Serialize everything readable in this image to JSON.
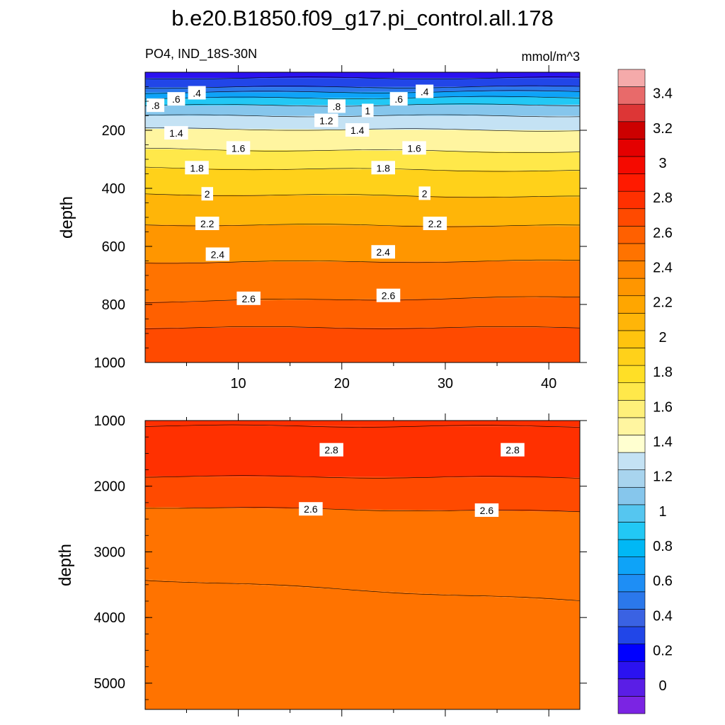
{
  "title": "b.e20.B1850.f09_g17.pi_control.all.178",
  "left_subtitle": "PO4, IND_18S-30N",
  "right_subtitle": "mmol/m^3",
  "chart_data": [
    {
      "type": "contour",
      "panel": "upper",
      "ylabel": "depth",
      "xlabel": "",
      "ylim": [
        1000,
        0
      ],
      "xlim": [
        1,
        43
      ],
      "y_ticks": [
        "200",
        "400",
        "600",
        "800",
        "1000"
      ],
      "y_tick_values": [
        200,
        400,
        600,
        800,
        1000
      ],
      "x_ticks": [
        "10",
        "20",
        "30",
        "40"
      ],
      "x_tick_values": [
        10,
        20,
        30,
        40
      ],
      "contour_interval": 0.1,
      "contour_depths_left_right": [
        {
          "level": 0.2,
          "left": 20,
          "right": 20
        },
        {
          "level": 0.4,
          "left": 52,
          "right": 50
        },
        {
          "level": 0.6,
          "left": 70,
          "right": 66
        },
        {
          "level": 0.8,
          "left": 90,
          "right": 86
        },
        {
          "level": 1.0,
          "left": 115,
          "right": 112
        },
        {
          "level": 1.2,
          "left": 150,
          "right": 150
        },
        {
          "level": 1.4,
          "left": 195,
          "right": 200
        },
        {
          "level": 1.6,
          "left": 265,
          "right": 275
        },
        {
          "level": 1.8,
          "left": 330,
          "right": 340
        },
        {
          "level": 2.0,
          "left": 420,
          "right": 430
        },
        {
          "level": 2.2,
          "left": 525,
          "right": 530
        },
        {
          "level": 2.4,
          "left": 655,
          "right": 650
        },
        {
          "level": 2.6,
          "left": 790,
          "right": 775
        },
        {
          "level": 2.7,
          "left": 880,
          "right": 880
        }
      ],
      "contour_labels": [
        {
          "text": ".4",
          "x": 6,
          "y": 72
        },
        {
          "text": ".6",
          "x": 4,
          "y": 93
        },
        {
          "text": ".8",
          "x": 2,
          "y": 115
        },
        {
          "text": "1.4",
          "x": 4,
          "y": 210
        },
        {
          "text": "1.8",
          "x": 6,
          "y": 330
        },
        {
          "text": "1.6",
          "x": 10,
          "y": 262
        },
        {
          "text": "2",
          "x": 7,
          "y": 420
        },
        {
          "text": "2.2",
          "x": 7,
          "y": 522
        },
        {
          "text": "2.4",
          "x": 8,
          "y": 628
        },
        {
          "text": "2.6",
          "x": 11,
          "y": 780
        },
        {
          "text": ".8",
          "x": 19.5,
          "y": 118
        },
        {
          "text": "1",
          "x": 22.5,
          "y": 133
        },
        {
          "text": ".6",
          "x": 25.5,
          "y": 93
        },
        {
          "text": ".4",
          "x": 28,
          "y": 67
        },
        {
          "text": "1.2",
          "x": 18.5,
          "y": 167
        },
        {
          "text": "1.4",
          "x": 21.5,
          "y": 200
        },
        {
          "text": "1.6",
          "x": 27,
          "y": 262
        },
        {
          "text": "1.8",
          "x": 24,
          "y": 330
        },
        {
          "text": "2",
          "x": 28,
          "y": 418
        },
        {
          "text": "2.2",
          "x": 29,
          "y": 522
        },
        {
          "text": "2.4",
          "x": 24,
          "y": 620
        },
        {
          "text": "2.6",
          "x": 24.5,
          "y": 770
        }
      ]
    },
    {
      "type": "contour",
      "panel": "lower",
      "ylabel": "depth",
      "xlabel": "",
      "ylim": [
        5400,
        1000
      ],
      "xlim": [
        1,
        43
      ],
      "y_ticks": [
        "1000",
        "2000",
        "3000",
        "4000",
        "5000"
      ],
      "y_tick_values": [
        1000,
        2000,
        3000,
        4000,
        5000
      ],
      "contour_depths_left_right": [
        {
          "level": 2.9,
          "left": 1080,
          "right": 1090
        },
        {
          "level": 2.8,
          "left": 1850,
          "right": 1870
        },
        {
          "level": 2.6,
          "left": 2320,
          "right": 2390
        },
        {
          "level": 2.5,
          "left": 3420,
          "right": 3750
        }
      ],
      "contour_labels": [
        {
          "text": "2.8",
          "x": 19,
          "y": 1450
        },
        {
          "text": "2.8",
          "x": 36.5,
          "y": 1450
        },
        {
          "text": "2.6",
          "x": 17,
          "y": 2350
        },
        {
          "text": "2.6",
          "x": 34,
          "y": 2370
        }
      ]
    }
  ],
  "colorbar": {
    "labels": [
      "3.4",
      "3.2",
      "3",
      "2.8",
      "2.6",
      "2.4",
      "2.2",
      "2",
      "1.8",
      "1.6",
      "1.4",
      "1.2",
      "1",
      "0.8",
      "0.6",
      "0.4",
      "0.2",
      "0"
    ],
    "colors": [
      "#7b24e3",
      "#5a1ee6",
      "#2b12f0",
      "#0000ff",
      "#2146e8",
      "#3a62e3",
      "#2b78eb",
      "#1e8ef5",
      "#0ea3f8",
      "#00b8f5",
      "#22c8f5",
      "#55c6f0",
      "#86c6ec",
      "#a8d4ee",
      "#c4e2f4",
      "#ffffd0",
      "#fff5a0",
      "#fff07a",
      "#ffe84a",
      "#ffdf26",
      "#ffd11a",
      "#ffc40e",
      "#ffb508",
      "#ffa600",
      "#ff9600",
      "#ff8500",
      "#ff7300",
      "#ff6000",
      "#ff4a00",
      "#ff3000",
      "#ff1a00",
      "#f50a00",
      "#e40000",
      "#cc0000",
      "#dd3636",
      "#e86a6a",
      "#f5aaaa"
    ]
  }
}
